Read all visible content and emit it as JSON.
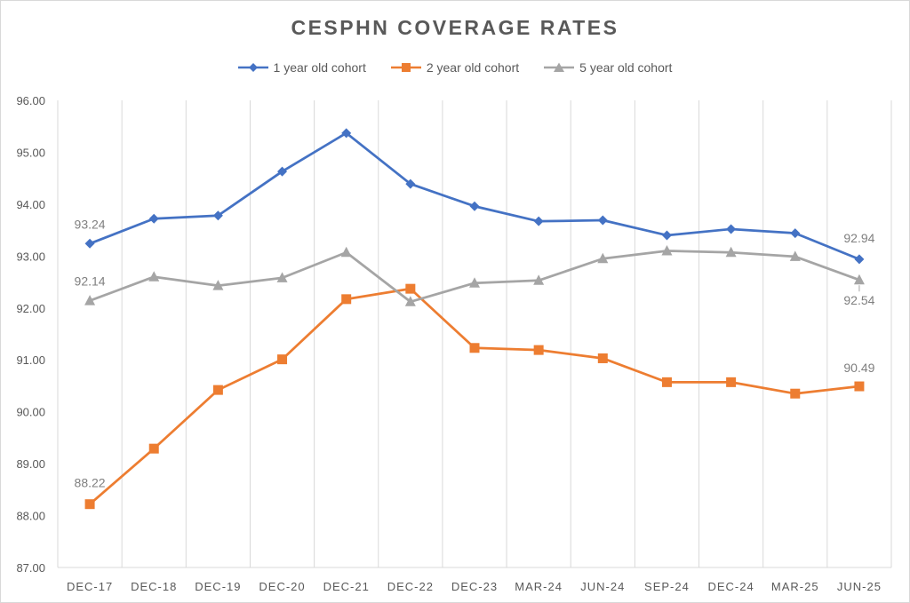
{
  "chart_data": {
    "type": "line",
    "title": "CESPHN COVERAGE RATES",
    "categories": [
      "DEC-17",
      "DEC-18",
      "DEC-19",
      "DEC-20",
      "DEC-21",
      "DEC-22",
      "DEC-23",
      "MAR-24",
      "JUN-24",
      "SEP-24",
      "DEC-24",
      "MAR-25",
      "JUN-25"
    ],
    "ylim": [
      87.0,
      96.0
    ],
    "yticks": [
      "87.00",
      "88.00",
      "89.00",
      "90.00",
      "91.00",
      "92.00",
      "93.00",
      "94.00",
      "95.00",
      "96.00"
    ],
    "grid": "vertical",
    "legend": "top",
    "series": [
      {
        "name": "1 year old cohort",
        "color": "#4472c4",
        "marker": "diamond",
        "values": [
          93.24,
          93.72,
          93.78,
          94.63,
          95.37,
          94.39,
          93.96,
          93.67,
          93.69,
          93.4,
          93.52,
          93.44,
          92.94
        ],
        "labels": {
          "0": "93.24",
          "12": "92.94"
        }
      },
      {
        "name": "2 year old cohort",
        "color": "#ed7d31",
        "marker": "square",
        "values": [
          88.22,
          89.29,
          90.42,
          91.01,
          92.17,
          92.37,
          91.23,
          91.19,
          91.03,
          90.57,
          90.57,
          90.35,
          90.49
        ],
        "labels": {
          "0": "88.22",
          "12": "90.49"
        }
      },
      {
        "name": "5 year old cohort",
        "color": "#a5a5a5",
        "marker": "triangle",
        "values": [
          92.14,
          92.6,
          92.43,
          92.58,
          93.07,
          92.12,
          92.48,
          92.53,
          92.95,
          93.1,
          93.07,
          92.99,
          92.54
        ],
        "labels": {
          "0": "92.14",
          "12": "92.54"
        }
      }
    ]
  }
}
